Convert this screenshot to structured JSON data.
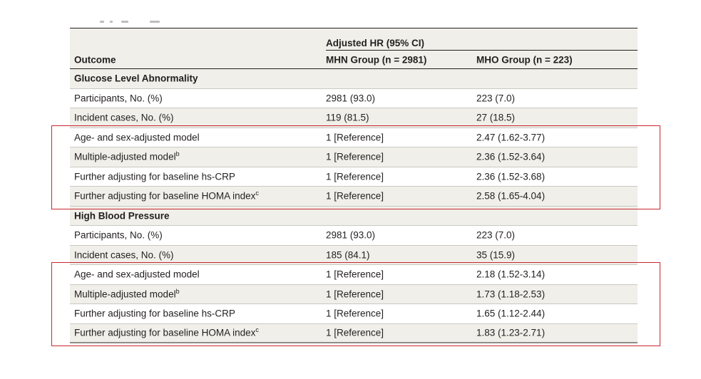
{
  "table": {
    "group_header": "Adjusted HR (95% CI)",
    "columns": [
      "Outcome",
      "MHN Group (n = 2981)",
      "MHO Group (n = 223)"
    ],
    "sections": [
      {
        "title": "Glucose Level Abnormality",
        "rows": [
          {
            "label": "Participants, No. (%)",
            "sup": "",
            "mhn": "2981 (93.0)",
            "mho": "223 (7.0)"
          },
          {
            "label": "Incident cases, No. (%)",
            "sup": "",
            "mhn": "119 (81.5)",
            "mho": "27 (18.5)"
          },
          {
            "label": "Age- and sex-adjusted model",
            "sup": "",
            "mhn": "1 [Reference]",
            "mho": "2.47 (1.62-3.77)"
          },
          {
            "label": "Multiple-adjusted model",
            "sup": "b",
            "mhn": "1 [Reference]",
            "mho": "2.36 (1.52-3.64)"
          },
          {
            "label": "Further adjusting for baseline hs-CRP",
            "sup": "",
            "mhn": "1 [Reference]",
            "mho": "2.36 (1.52-3.68)"
          },
          {
            "label": "Further adjusting for baseline HOMA index",
            "sup": "c",
            "mhn": "1 [Reference]",
            "mho": "2.58 (1.65-4.04)"
          }
        ]
      },
      {
        "title": "High Blood Pressure",
        "rows": [
          {
            "label": "Participants, No. (%)",
            "sup": "",
            "mhn": "2981 (93.0)",
            "mho": "223 (7.0)"
          },
          {
            "label": "Incident cases, No. (%)",
            "sup": "",
            "mhn": "185 (84.1)",
            "mho": "35 (15.9)"
          },
          {
            "label": "Age- and sex-adjusted model",
            "sup": "",
            "mhn": "1 [Reference]",
            "mho": "2.18 (1.52-3.14)"
          },
          {
            "label": "Multiple-adjusted model",
            "sup": "b",
            "mhn": "1 [Reference]",
            "mho": "1.73 (1.18-2.53)"
          },
          {
            "label": "Further adjusting for baseline hs-CRP",
            "sup": "",
            "mhn": "1 [Reference]",
            "mho": "1.65 (1.12-2.44)"
          },
          {
            "label": "Further adjusting for baseline HOMA index",
            "sup": "c",
            "mhn": "1 [Reference]",
            "mho": "1.83 (1.23-2.71)"
          }
        ]
      }
    ]
  },
  "colors": {
    "highlight": "#c8262d",
    "header_shade": "#f0efe9",
    "text": "#231f20"
  }
}
